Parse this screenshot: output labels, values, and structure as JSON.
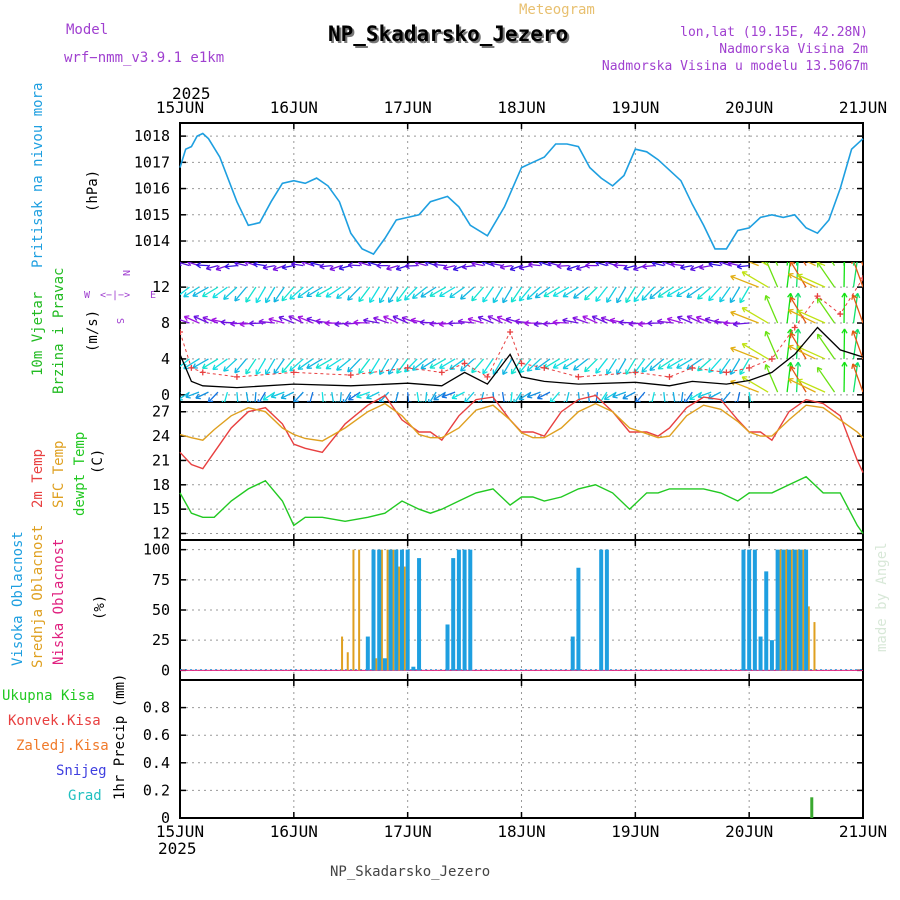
{
  "header": {
    "model_label": "Model",
    "model_value": "wrf−nmm_v3.9.1  e1km",
    "meteogram_label": "Meteogram",
    "station_title": "NP_Skadarsko_Jezero",
    "coords": "lon,lat (19.15E, 42.28N)",
    "altitude": "Nadmorska Visina 2m",
    "model_altitude": "Nadmorska Visina u modelu 13.5067m",
    "year_top": "2025",
    "year_bottom": "2025",
    "footer_station": "NP_Skadarsko_Jezero",
    "watermark": "made by Angel"
  },
  "colors": {
    "pressure": "#1e9fe0",
    "wind_label": "#22bb22",
    "temp2m": "#e84040",
    "sfc_temp": "#dfa020",
    "dewpoint": "#22c922",
    "high_cloud": "#1e9fe0",
    "mid_cloud": "#dfa020",
    "low_cloud": "#e0207f",
    "precip": "#3aa830",
    "purple": "#a040d0"
  },
  "x_axis": {
    "day_labels": [
      "15JUN",
      "16JUN",
      "17JUN",
      "18JUN",
      "19JUN",
      "20JUN",
      "21JUN"
    ]
  },
  "compass": {
    "n": "N",
    "w": "W",
    "e": "E",
    "s": "S"
  },
  "chart_data": [
    {
      "type": "line",
      "panel": "pressure",
      "ylabel_parts": [
        "Pritisak na nivou mora",
        "(hPa)"
      ],
      "ylim": [
        1013.2,
        1018.5
      ],
      "yticks": [
        1014,
        1015,
        1016,
        1017,
        1018
      ],
      "x_days": [
        0,
        0.05,
        0.1,
        0.15,
        0.2,
        0.25,
        0.35,
        0.5,
        0.6,
        0.7,
        0.8,
        0.9,
        1.0,
        1.1,
        1.2,
        1.3,
        1.4,
        1.5,
        1.6,
        1.7,
        1.8,
        1.9,
        2.0,
        2.1,
        2.2,
        2.35,
        2.45,
        2.55,
        2.7,
        2.85,
        3.0,
        3.1,
        3.2,
        3.3,
        3.4,
        3.5,
        3.6,
        3.7,
        3.8,
        3.9,
        4.0,
        4.1,
        4.2,
        4.3,
        4.4,
        4.5,
        4.6,
        4.7,
        4.8,
        4.9,
        5.0,
        5.1,
        5.2,
        5.3,
        5.4,
        5.5,
        5.6,
        5.7,
        5.8,
        5.9,
        6.0
      ],
      "values": [
        1016.8,
        1017.5,
        1017.6,
        1018.0,
        1018.1,
        1017.9,
        1017.2,
        1015.5,
        1014.6,
        1014.7,
        1015.5,
        1016.2,
        1016.3,
        1016.2,
        1016.4,
        1016.1,
        1015.5,
        1014.3,
        1013.7,
        1013.5,
        1014.1,
        1014.8,
        1014.9,
        1015.0,
        1015.5,
        1015.7,
        1015.3,
        1014.6,
        1014.2,
        1015.3,
        1016.8,
        1017.0,
        1017.2,
        1017.7,
        1017.7,
        1017.6,
        1016.8,
        1016.4,
        1016.1,
        1016.5,
        1017.5,
        1017.4,
        1017.1,
        1016.7,
        1016.3,
        1015.4,
        1014.6,
        1013.7,
        1013.7,
        1014.4,
        1014.5,
        1014.9,
        1015.0,
        1014.9,
        1015.0,
        1014.5,
        1014.3,
        1014.8,
        1016.0,
        1017.5,
        1017.9
      ],
      "grid": true
    },
    {
      "type": "scatter",
      "panel": "wind",
      "ylabel_parts": [
        "10m Vjetar",
        "Brzina i Pravac",
        "(m/s)"
      ],
      "ylim": [
        -0.8,
        14.8
      ],
      "yticks": [
        0,
        4,
        8,
        12
      ],
      "series": [
        {
          "name": "speed",
          "color": "#000000",
          "x_days": [
            0,
            0.1,
            0.2,
            0.5,
            1.0,
            1.5,
            2.0,
            2.3,
            2.5,
            2.7,
            2.9,
            3.0,
            3.2,
            3.5,
            4.0,
            4.3,
            4.5,
            4.8,
            5.0,
            5.2,
            5.4,
            5.6,
            5.8,
            6.0
          ],
          "values": [
            4.5,
            1.5,
            1.0,
            0.8,
            1.2,
            1.0,
            1.3,
            1.0,
            2.5,
            1.2,
            4.5,
            2.0,
            1.5,
            1.2,
            1.4,
            1.0,
            1.5,
            1.2,
            1.6,
            2.5,
            4.5,
            7.5,
            5.0,
            4.2
          ]
        },
        {
          "name": "gust",
          "color": "#e84040",
          "x_days": [
            0,
            0.1,
            0.2,
            0.5,
            1.0,
            1.5,
            2.0,
            2.3,
            2.5,
            2.7,
            2.9,
            3.0,
            3.2,
            3.5,
            4.0,
            4.3,
            4.5,
            4.8,
            5.0,
            5.2,
            5.4,
            5.6,
            5.8,
            6.0
          ],
          "values": [
            7.0,
            3.0,
            2.5,
            2.0,
            2.5,
            2.2,
            3.0,
            2.5,
            3.5,
            2.0,
            7.0,
            3.5,
            3.0,
            2.0,
            2.5,
            2.0,
            3.0,
            2.5,
            3.0,
            4.0,
            7.5,
            11.0,
            9.0,
            13.0
          ]
        }
      ],
      "arrow_rows": [
        0.3,
        4,
        8,
        12,
        14.4
      ],
      "grid": true
    },
    {
      "type": "line",
      "panel": "temperature",
      "ylabel_parts": [
        "2m Temp",
        "SFC Temp",
        "dewpt Temp",
        "(C)"
      ],
      "ylim": [
        11.2,
        28.2
      ],
      "yticks": [
        12,
        15,
        18,
        21,
        24,
        27
      ],
      "x_days": [
        0,
        0.1,
        0.2,
        0.3,
        0.45,
        0.6,
        0.75,
        0.9,
        1.0,
        1.1,
        1.25,
        1.45,
        1.65,
        1.8,
        1.95,
        2.1,
        2.2,
        2.3,
        2.45,
        2.6,
        2.75,
        2.9,
        3.0,
        3.1,
        3.2,
        3.35,
        3.5,
        3.65,
        3.8,
        3.95,
        4.1,
        4.2,
        4.3,
        4.45,
        4.6,
        4.75,
        4.9,
        5.0,
        5.1,
        5.2,
        5.35,
        5.5,
        5.65,
        5.8,
        5.95,
        6.0
      ],
      "series": [
        {
          "name": "2m Temp",
          "color": "#e84040",
          "values": [
            22,
            20.5,
            20,
            22,
            25,
            27,
            27.5,
            25.5,
            23,
            22.5,
            22,
            25.5,
            27.8,
            29,
            26,
            24.5,
            24.5,
            23.5,
            26.5,
            28.5,
            28.8,
            26,
            24.5,
            24.5,
            24,
            27,
            28.5,
            29,
            27,
            24.5,
            24.5,
            24,
            25,
            27.5,
            28.8,
            28.5,
            26,
            24.5,
            24.5,
            23.5,
            27,
            28.5,
            28,
            26.5,
            21,
            19.5
          ]
        },
        {
          "name": "SFC Temp",
          "color": "#dfa020",
          "values": [
            24.2,
            23.8,
            23.5,
            24.8,
            26.5,
            27.5,
            27,
            25,
            24.2,
            23.7,
            23.4,
            25,
            27,
            28,
            26.5,
            24.2,
            23.8,
            23.8,
            25,
            27.2,
            27.8,
            26,
            24.4,
            23.8,
            23.8,
            25,
            27,
            28,
            27,
            25,
            24.3,
            23.8,
            24,
            26.5,
            27.8,
            27.3,
            25.8,
            24.5,
            24,
            24,
            26,
            27.8,
            27.5,
            26,
            24.5,
            23.8
          ]
        },
        {
          "name": "dewpt Temp",
          "color": "#22c922",
          "values": [
            17,
            14.5,
            14,
            14,
            16,
            17.5,
            18.5,
            16,
            13,
            14,
            14,
            13.5,
            14,
            14.5,
            16,
            15,
            14.5,
            15,
            16,
            17,
            17.5,
            15.5,
            16.5,
            16.5,
            16,
            16.5,
            17.5,
            18,
            17,
            15,
            17,
            17,
            17.5,
            17.5,
            17.5,
            17,
            16,
            17,
            17,
            17,
            18,
            19,
            17,
            17,
            13,
            12
          ]
        }
      ],
      "grid": true
    },
    {
      "type": "bar",
      "panel": "cloud",
      "ylabel_parts": [
        "Visoka Oblacnost",
        "Srednja Oblacnost",
        "Niska Oblacnost",
        "(%)"
      ],
      "ylim": [
        -8,
        108
      ],
      "yticks": [
        0,
        25,
        50,
        75,
        100
      ],
      "series": [
        {
          "name": "Visoka Oblacnost",
          "color": "#1e9fe0",
          "x_days": [
            1.65,
            1.7,
            1.75,
            1.8,
            1.85,
            1.9,
            1.95,
            2.0,
            2.05,
            2.1,
            2.35,
            2.4,
            2.45,
            2.5,
            2.55,
            3.45,
            3.5,
            3.7,
            3.75,
            4.95,
            5.0,
            5.05,
            5.1,
            5.15,
            5.2,
            5.25,
            5.3,
            5.35,
            5.4,
            5.45,
            5.5
          ],
          "values": [
            28,
            100,
            100,
            10,
            100,
            100,
            100,
            100,
            3,
            93,
            38,
            93,
            100,
            100,
            100,
            28,
            85,
            100,
            100,
            100,
            100,
            100,
            28,
            82,
            25,
            100,
            100,
            100,
            100,
            100,
            100
          ]
        },
        {
          "name": "Srednja Oblacnost",
          "color": "#dfa020",
          "x_days": [
            1.45,
            1.5,
            1.55,
            1.6,
            1.75,
            1.8,
            1.85,
            1.9,
            1.95,
            1.98,
            2.0,
            5.3,
            5.35,
            5.4,
            5.45,
            5.5,
            5.55,
            5.6
          ],
          "values": [
            28,
            15,
            100,
            100,
            10,
            100,
            100,
            100,
            86,
            86,
            86,
            100,
            100,
            100,
            100,
            100,
            53,
            40
          ]
        },
        {
          "name": "Niska Oblacnost",
          "color": "#e0207f",
          "x_days": [],
          "values": []
        }
      ],
      "grid": true
    },
    {
      "type": "bar",
      "panel": "precip",
      "ylabel": "1hr Precip (mm)",
      "ylim": [
        0,
        1.0
      ],
      "yticks": [
        0,
        0.2,
        0.4,
        0.6,
        0.8
      ],
      "legend": [
        "Ukupna Kisa",
        "Konvek.Kisa",
        "Zaledj.Kisa",
        "Snijeg",
        "Grad"
      ],
      "legend_colors": [
        "#22c922",
        "#e84040",
        "#f07a2a",
        "#4040e0",
        "#20c0c0"
      ],
      "series": [
        {
          "name": "Ukupna Kisa",
          "color": "#3aa830",
          "x_days": [
            5.55
          ],
          "values": [
            0.15
          ]
        }
      ],
      "grid": true
    }
  ]
}
